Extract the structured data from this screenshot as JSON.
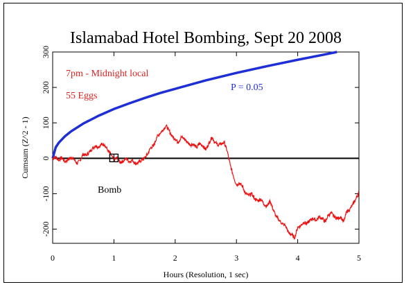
{
  "chart_data": {
    "type": "line",
    "title": "Islamabad Hotel Bombing, Sept 20 2008",
    "xlabel": "Hours (Resolution, 1 sec)",
    "ylabel": "Cumsum (Z^2 - 1)",
    "xlim": [
      0,
      5
    ],
    "ylim": [
      -240,
      300
    ],
    "x_ticks": [
      0,
      1,
      2,
      3,
      4,
      5
    ],
    "y_ticks": [
      -200,
      -100,
      0,
      100,
      200,
      300
    ],
    "x_tick_labels": [
      "0",
      "1",
      "2",
      "3",
      "4",
      "5"
    ],
    "y_tick_labels": [
      "-200",
      "-100",
      "0",
      "100",
      "200",
      "300"
    ],
    "annotations": {
      "time_window": "7pm - Midnight local",
      "eggs": "55 Eggs",
      "probability": "P = 0.05",
      "event": "Bomb"
    },
    "event_marker": {
      "x": 1.0,
      "y": 0
    },
    "colors": {
      "data": "#ee1111",
      "probability": "#1f2fd6",
      "zero_line": "#000000",
      "annotation_red": "#e02020",
      "annotation_blue": "#1f2fd6"
    },
    "series": [
      {
        "name": "P = 0.05",
        "x": [
          0.0,
          0.05,
          0.1,
          0.2,
          0.3,
          0.5,
          0.75,
          1.0,
          1.25,
          1.5,
          1.75,
          2.0,
          2.5,
          3.0,
          3.5,
          4.0,
          4.5,
          4.64
        ],
        "y": [
          0,
          31,
          44,
          62,
          76,
          98,
          120,
          139,
          155,
          170,
          184,
          196,
          220,
          241,
          260,
          278,
          295,
          300
        ]
      },
      {
        "name": "Cumsum",
        "x": [
          0.0,
          0.05,
          0.1,
          0.15,
          0.2,
          0.25,
          0.3,
          0.35,
          0.4,
          0.45,
          0.5,
          0.55,
          0.6,
          0.65,
          0.7,
          0.75,
          0.8,
          0.85,
          0.9,
          0.95,
          1.0,
          1.05,
          1.1,
          1.15,
          1.2,
          1.25,
          1.3,
          1.35,
          1.4,
          1.45,
          1.5,
          1.55,
          1.6,
          1.65,
          1.7,
          1.75,
          1.8,
          1.85,
          1.9,
          1.95,
          2.0,
          2.05,
          2.1,
          2.15,
          2.2,
          2.25,
          2.3,
          2.35,
          2.4,
          2.45,
          2.5,
          2.55,
          2.6,
          2.65,
          2.7,
          2.75,
          2.8,
          2.85,
          2.9,
          2.95,
          3.0,
          3.05,
          3.1,
          3.15,
          3.2,
          3.25,
          3.3,
          3.35,
          3.4,
          3.45,
          3.5,
          3.55,
          3.6,
          3.65,
          3.7,
          3.75,
          3.8,
          3.85,
          3.9,
          3.95,
          4.0,
          4.05,
          4.1,
          4.15,
          4.2,
          4.25,
          4.3,
          4.35,
          4.4,
          4.45,
          4.5,
          4.55,
          4.6,
          4.65,
          4.7,
          4.75,
          4.8,
          4.85,
          4.9,
          4.95,
          5.0
        ],
        "y": [
          0,
          4,
          -6,
          2,
          -10,
          -4,
          3,
          -3,
          -15,
          -5,
          12,
          8,
          18,
          28,
          35,
          32,
          40,
          38,
          22,
          10,
          -5,
          2,
          -12,
          -8,
          0,
          -10,
          -5,
          -15,
          -12,
          -5,
          0,
          12,
          30,
          35,
          60,
          70,
          80,
          92,
          78,
          62,
          55,
          45,
          60,
          55,
          45,
          38,
          40,
          30,
          42,
          35,
          25,
          42,
          60,
          45,
          38,
          40,
          45,
          20,
          -20,
          -50,
          -75,
          -70,
          -80,
          -100,
          -105,
          -100,
          -115,
          -120,
          -115,
          -130,
          -135,
          -120,
          -145,
          -165,
          -175,
          -185,
          -190,
          -210,
          -215,
          -225,
          -195,
          -190,
          -180,
          -185,
          -175,
          -170,
          -175,
          -165,
          -170,
          -180,
          -160,
          -155,
          -165,
          -170,
          -165,
          -180,
          -150,
          -145,
          -130,
          -115,
          -95
        ]
      }
    ]
  }
}
